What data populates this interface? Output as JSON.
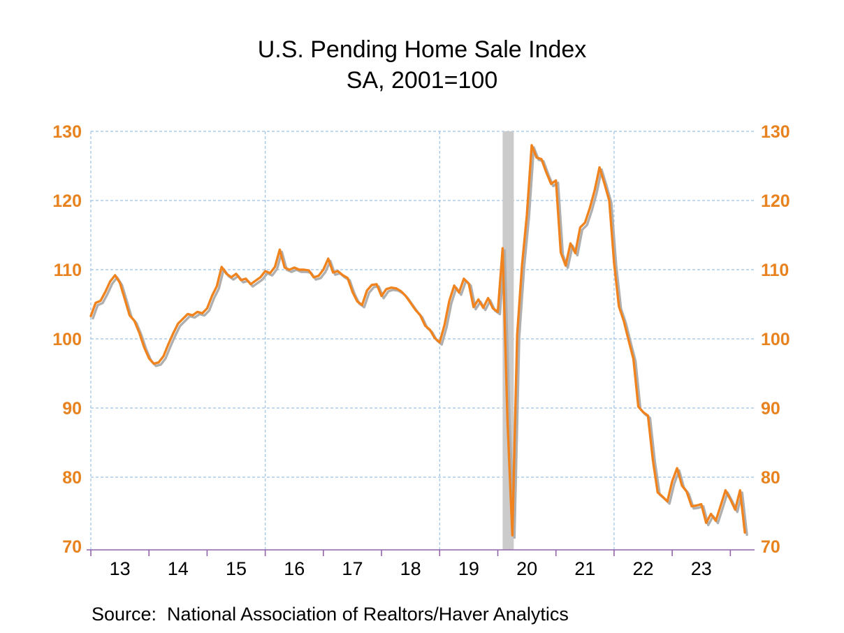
{
  "page": {
    "background": "#FFFFFF"
  },
  "chart": {
    "title": "U.S. Pending Home Sale Index",
    "subtitle": "SA, 2001=100",
    "source_note": "Source:  National Association of Realtors/Haver Analytics"
  },
  "chart_data": {
    "type": "line",
    "title": "U.S. Pending Home Sale Index",
    "subtitle": "SA, 2001=100",
    "source": "Source:  National Association of Realtors/Haver Analytics",
    "x_unit": "month",
    "x_start": "2013-01",
    "x_end": "2024-04",
    "x_domain_months": 137,
    "x_axis_tick_labels": [
      "13",
      "14",
      "15",
      "16",
      "17",
      "18",
      "19",
      "20",
      "21",
      "22",
      "23"
    ],
    "y_ticks": [
      70,
      80,
      90,
      100,
      110,
      120,
      130
    ],
    "ylim": [
      70,
      130
    ],
    "grid": {
      "horizontal_lines": [
        80,
        90,
        100,
        110,
        120,
        130
      ],
      "vertical_lines_at_years": [
        2013,
        2016,
        2019,
        2022
      ],
      "style": "dashed"
    },
    "recession_band": {
      "name": "covid-recession-shading",
      "from": "2020-02",
      "to": "2020-04",
      "from_month_index": 85,
      "to_month_index": 87.3
    },
    "legend_position": "none",
    "series": [
      {
        "name": "U.S. Pending Home Sale Index (SA, 2001=100)",
        "shadow": true,
        "values": [
          103.3,
          105.2,
          105.5,
          106.8,
          108.3,
          109.2,
          108.1,
          105.8,
          103.4,
          102.6,
          100.9,
          98.8,
          97.2,
          96.4,
          96.6,
          97.5,
          99.2,
          100.8,
          102.2,
          102.9,
          103.6,
          103.4,
          103.9,
          103.7,
          104.4,
          106.2,
          107.6,
          110.4,
          109.4,
          108.9,
          109.4,
          108.5,
          108.7,
          107.9,
          108.4,
          108.9,
          109.8,
          109.5,
          110.4,
          112.9,
          110.3,
          110.0,
          110.3,
          110.0,
          110.0,
          109.9,
          108.9,
          109.1,
          110.0,
          111.6,
          109.6,
          109.8,
          109.2,
          108.8,
          106.8,
          105.4,
          104.9,
          107.0,
          107.8,
          107.9,
          106.2,
          107.2,
          107.4,
          107.3,
          106.9,
          106.2,
          105.2,
          104.2,
          103.4,
          101.9,
          101.3,
          100.1,
          99.5,
          102.0,
          105.5,
          107.7,
          106.7,
          108.7,
          108.0,
          104.6,
          105.7,
          104.5,
          105.9,
          104.4,
          103.9,
          113.1,
          88.0,
          71.6,
          100.6,
          110.7,
          117.9,
          128.0,
          126.2,
          126.0,
          124.1,
          122.4,
          122.9,
          112.5,
          110.6,
          113.8,
          112.4,
          116.1,
          116.8,
          118.9,
          121.5,
          124.8,
          122.5,
          120.0,
          111.0,
          104.7,
          102.6,
          99.8,
          97.1,
          90.2,
          89.4,
          88.9,
          82.5,
          77.8,
          77.2,
          76.5,
          79.4,
          81.3,
          78.8,
          77.9,
          75.8,
          75.9,
          76.1,
          73.4,
          74.7,
          73.7,
          75.9,
          78.1,
          76.8,
          75.3,
          78.1,
          72.0
        ]
      }
    ],
    "colors": {
      "line": "#F0831E",
      "line_shadow": "#AFAFAF",
      "recession_band": "#CBCBCB",
      "y_tick_labels": "#E8821E",
      "x_tick_labels": "#000000",
      "gridlines": "#9CC2E5",
      "x_axis_line": "#9263A8"
    },
    "layout": {
      "plot_left": 130,
      "plot_top": 188,
      "plot_right": 1080,
      "plot_bottom": 782,
      "axis_line_y": 787
    }
  }
}
